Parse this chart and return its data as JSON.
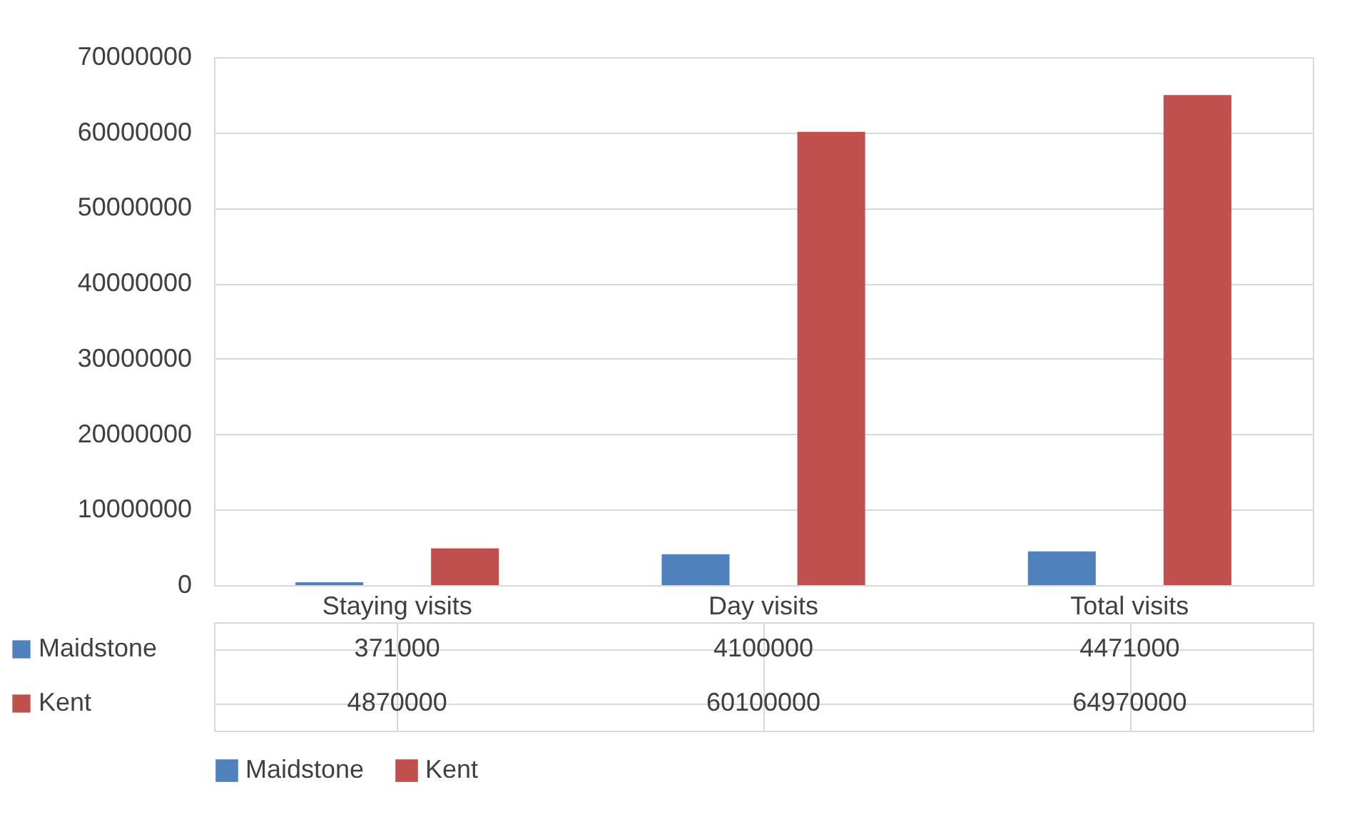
{
  "chart_data": {
    "type": "bar",
    "categories": [
      "Staying visits",
      "Day visits",
      "Total visits"
    ],
    "series": [
      {
        "name": "Maidstone",
        "color": "#4f81bd",
        "values": [
          371000,
          4100000,
          4471000
        ]
      },
      {
        "name": "Kent",
        "color": "#c0504d",
        "values": [
          4870000,
          60100000,
          64970000
        ]
      }
    ],
    "ylim": [
      0,
      70000000
    ],
    "yticks": [
      0,
      10000000,
      20000000,
      30000000,
      40000000,
      50000000,
      60000000,
      70000000
    ],
    "grid": "y",
    "legend": "bottom",
    "data_labels": true
  }
}
